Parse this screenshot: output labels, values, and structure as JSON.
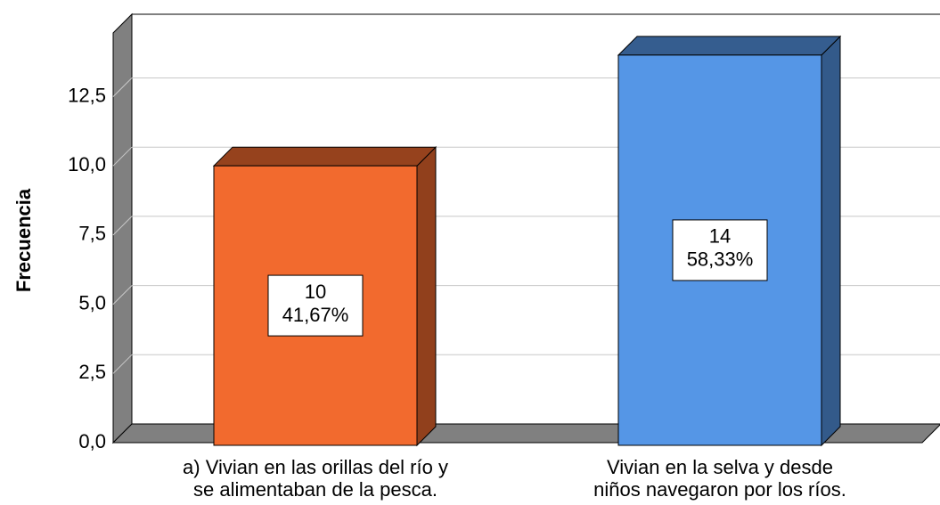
{
  "chart_data": {
    "type": "bar3d",
    "y_label": "Frecuencia",
    "categories": [
      [
        "a) Vivian en las orillas del río y",
        "se alimentaban de la pesca."
      ],
      [
        "Vivian en la selva y desde",
        "niños navegaron por los ríos."
      ]
    ],
    "values": [
      10,
      14
    ],
    "percents": [
      41.67,
      58.33
    ],
    "percent_labels": [
      "41,67%",
      "58,33%"
    ],
    "colors": [
      "#f26a2e",
      "#5596e6"
    ],
    "ylim": [
      0,
      14.8
    ],
    "yticks": [
      {
        "value": 0,
        "label": "0,0"
      },
      {
        "value": 2.5,
        "label": "2,5"
      },
      {
        "value": 5,
        "label": "5,0"
      },
      {
        "value": 7.5,
        "label": "7,5"
      },
      {
        "value": 10,
        "label": "10,0"
      },
      {
        "value": 12.5,
        "label": "12,5"
      }
    ],
    "grid": true
  }
}
